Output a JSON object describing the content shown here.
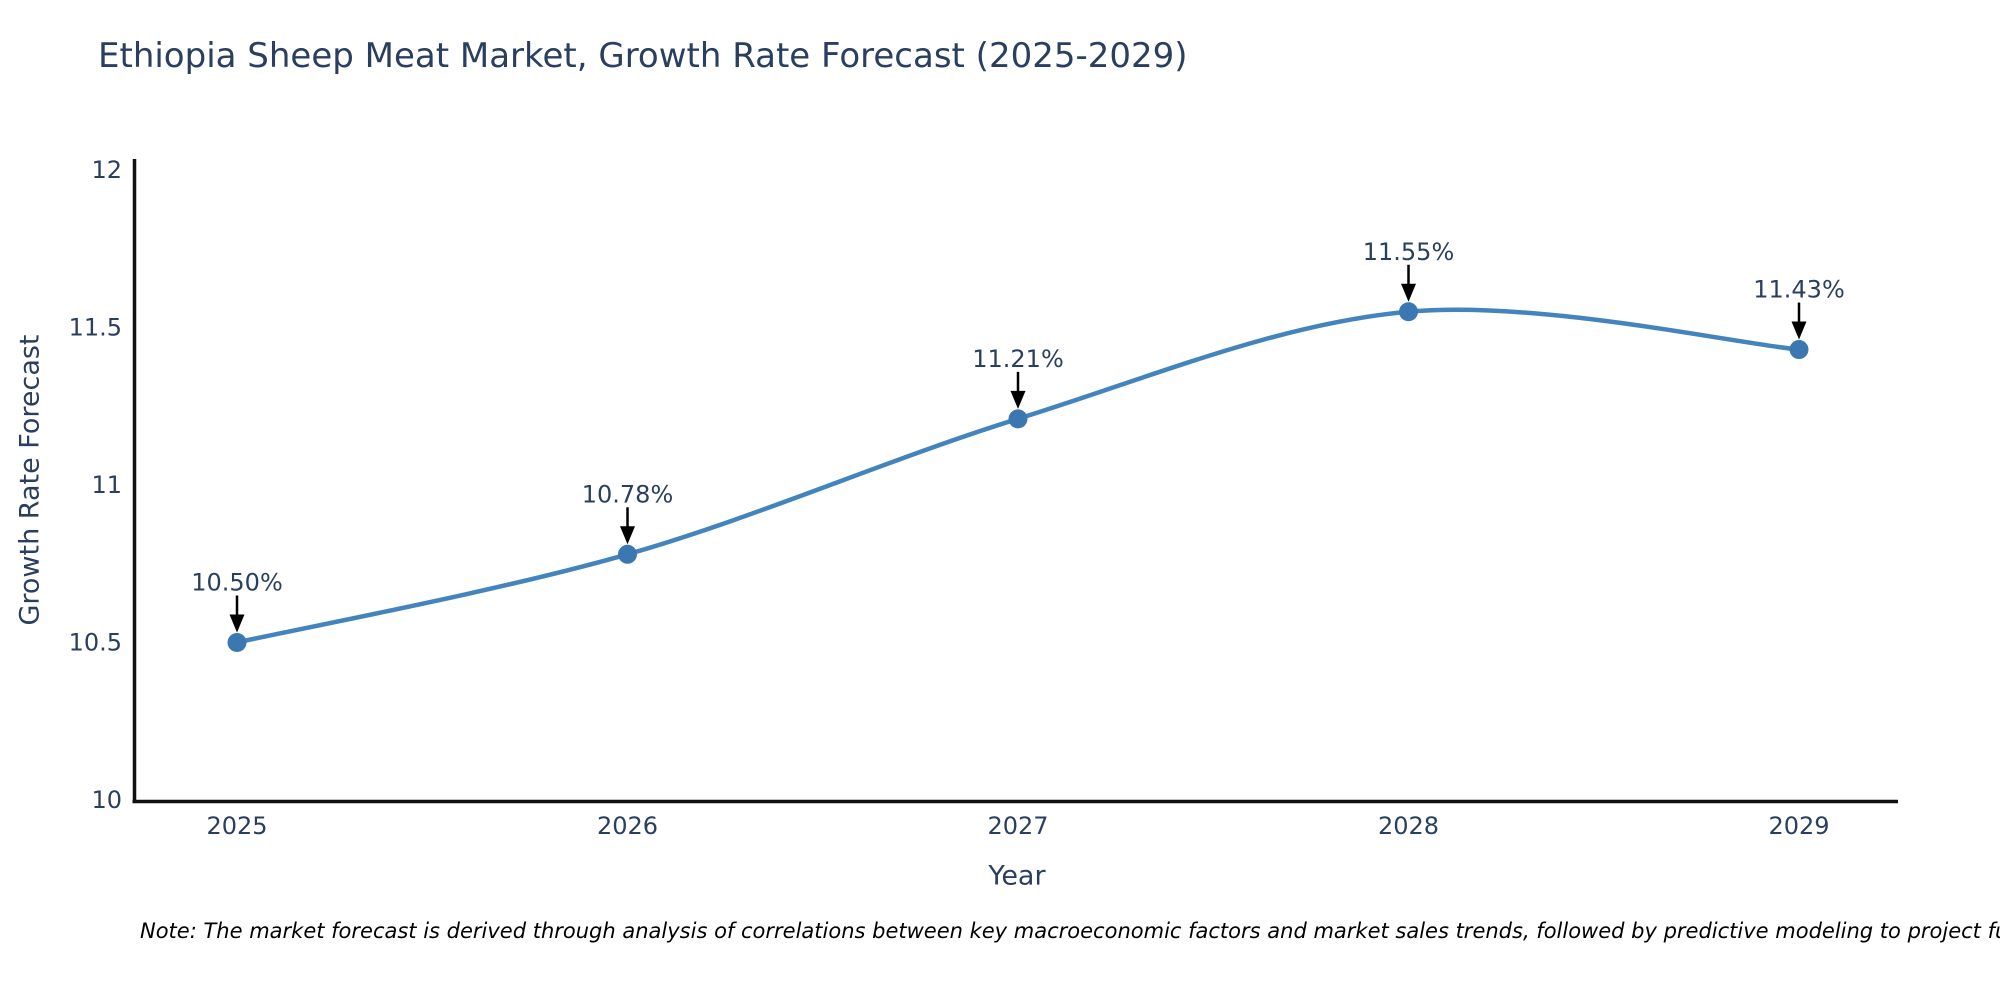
{
  "title": "Ethiopia Sheep Meat Market, Growth Rate Forecast (2025-2029)",
  "note": "Note: The market forecast is derived through analysis of correlations between key macroeconomic factors and market sales trends, followed by predictive modeling to project future sal",
  "chart_data": {
    "type": "line",
    "title": "Ethiopia Sheep Meat Market, Growth Rate Forecast (2025-2029)",
    "xlabel": "Year",
    "ylabel": "Growth Rate Forecast",
    "x": [
      2025,
      2026,
      2027,
      2028,
      2029
    ],
    "x_tick_labels": [
      "2025",
      "2026",
      "2027",
      "2028",
      "2029"
    ],
    "values": [
      10.5,
      10.78,
      11.21,
      11.55,
      11.43
    ],
    "point_labels": [
      "10.50%",
      "10.78%",
      "11.21%",
      "11.55%",
      "11.43%"
    ],
    "ylim": [
      10,
      12
    ],
    "yticks": [
      10,
      10.5,
      11,
      11.5,
      12
    ],
    "y_tick_labels": [
      "10",
      "10.5",
      "11",
      "11.5",
      "12"
    ],
    "line_shape": "spline",
    "markers": true,
    "grid": false,
    "legend": "none",
    "colors": {
      "line": "#4484bd",
      "marker": "#3b78b2",
      "axis_line": "#111111",
      "text": "#2a3f5f",
      "annotation_arrow": "#000000",
      "background": "#ffffff"
    }
  }
}
